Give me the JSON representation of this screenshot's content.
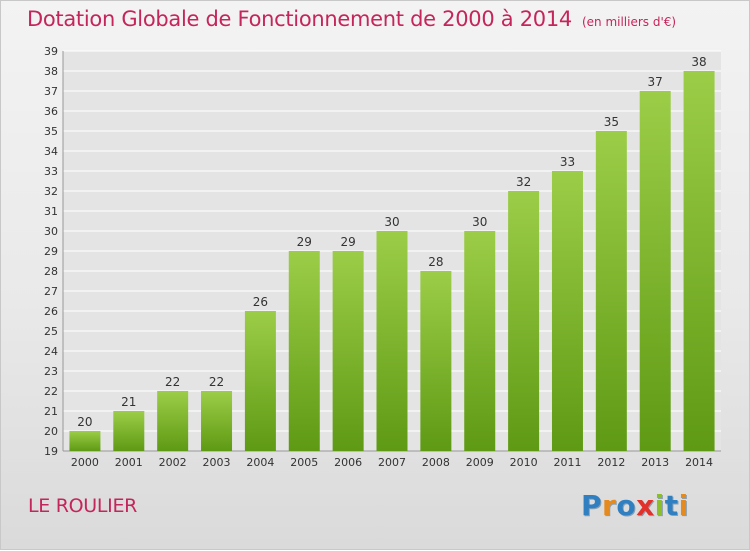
{
  "title": {
    "main": "Dotation Globale de Fonctionnement de 2000 à 2014",
    "unit": "(en milliers d'€)"
  },
  "commune": "LE ROULIER",
  "logo": {
    "text": "Proxiti",
    "letters": [
      {
        "ch": "P",
        "color": "#2f7fc1"
      },
      {
        "ch": "r",
        "color": "#e58a1f"
      },
      {
        "ch": "o",
        "color": "#2f7fc1"
      },
      {
        "ch": "x",
        "color": "#e2312b"
      },
      {
        "ch": "i",
        "color": "#8cbe2a"
      },
      {
        "ch": "t",
        "color": "#2f7fc1"
      },
      {
        "ch": "i",
        "color": "#e58a1f"
      }
    ]
  },
  "colors": {
    "title": "#c4255a",
    "bar_top": "#9ccd48",
    "bar_bottom": "#5f9a14",
    "grid": "#ffffff",
    "axis_text": "#333333"
  },
  "chart_data": {
    "type": "bar",
    "categories": [
      "2000",
      "2001",
      "2002",
      "2003",
      "2004",
      "2005",
      "2006",
      "2007",
      "2008",
      "2009",
      "2010",
      "2011",
      "2012",
      "2013",
      "2014"
    ],
    "values": [
      20,
      21,
      22,
      22,
      26,
      29,
      29,
      30,
      28,
      30,
      32,
      33,
      35,
      37,
      38
    ],
    "ylim": [
      19,
      39
    ],
    "yticks": [
      19,
      20,
      21,
      22,
      23,
      24,
      25,
      26,
      27,
      28,
      29,
      30,
      31,
      32,
      33,
      34,
      35,
      36,
      37,
      38,
      39
    ],
    "grid": true,
    "xlabel": "",
    "ylabel": ""
  }
}
